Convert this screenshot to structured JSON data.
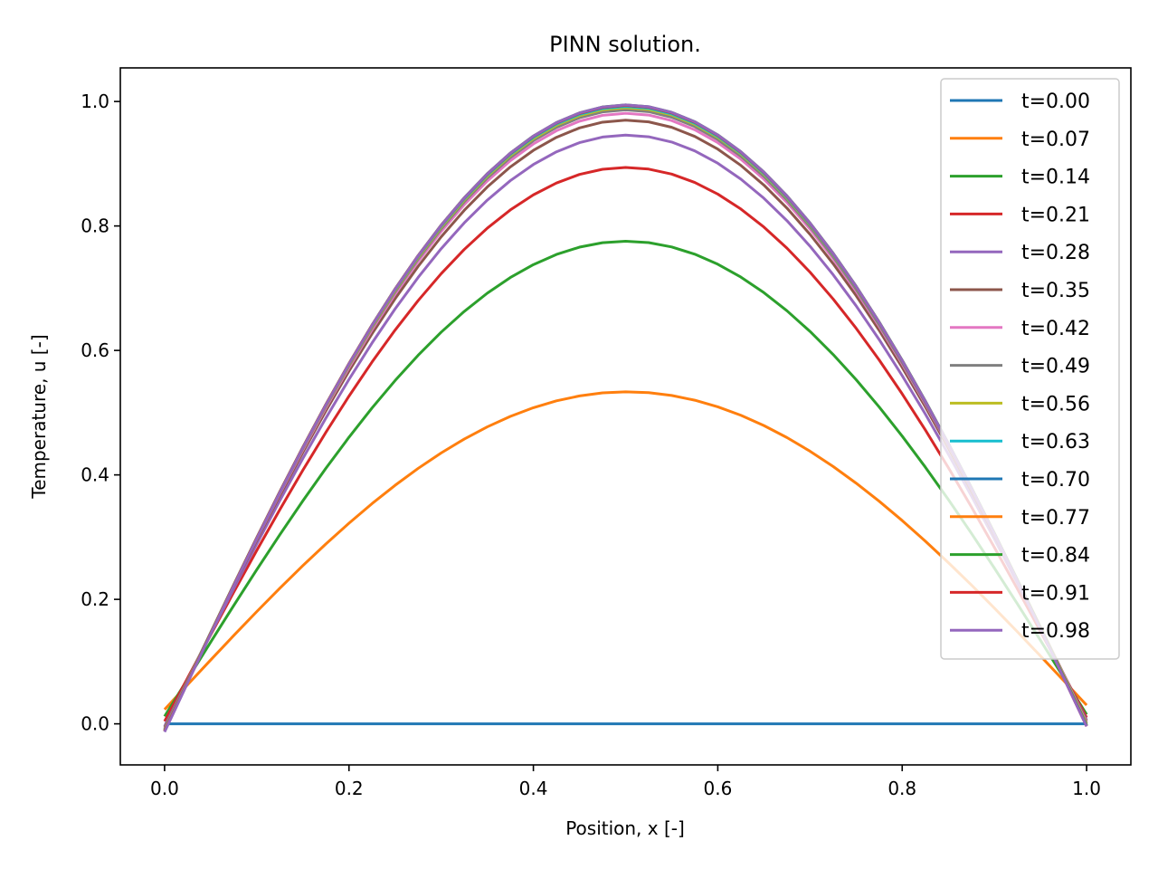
{
  "chart_data": {
    "type": "line",
    "title": "PINN solution.",
    "xlabel": "Position, x [-]",
    "ylabel": "Temperature, u [-]",
    "xlim": [
      -0.048,
      1.048
    ],
    "ylim": [
      -0.066,
      1.054
    ],
    "xticks": [
      "0.0",
      "0.2",
      "0.4",
      "0.6",
      "0.8",
      "1.0"
    ],
    "yticks": [
      "0.0",
      "0.2",
      "0.4",
      "0.6",
      "0.8",
      "1.0"
    ],
    "grid": false,
    "legend_position": "top-right",
    "x_samples": [
      0.0,
      0.025,
      0.05,
      0.075,
      0.1,
      0.125,
      0.15,
      0.175,
      0.2,
      0.225,
      0.25,
      0.275,
      0.3,
      0.325,
      0.35,
      0.375,
      0.4,
      0.425,
      0.45,
      0.475,
      0.5,
      0.525,
      0.55,
      0.575,
      0.6,
      0.625,
      0.65,
      0.675,
      0.7,
      0.725,
      0.75,
      0.775,
      0.8,
      0.825,
      0.85,
      0.875,
      0.9,
      0.925,
      0.95,
      0.975,
      1.0
    ],
    "series": [
      {
        "name": "t=0.00",
        "color": "#1f77b4",
        "peak": 0.0,
        "u0": 0.0,
        "u1": 0.0
      },
      {
        "name": "t=0.07",
        "color": "#ff7f0e",
        "peak": 0.507,
        "u0": 0.023,
        "u1": 0.03
      },
      {
        "name": "t=0.14",
        "color": "#2ca02c",
        "peak": 0.762,
        "u0": 0.012,
        "u1": 0.015
      },
      {
        "name": "t=0.21",
        "color": "#d62728",
        "peak": 0.887,
        "u0": 0.004,
        "u1": 0.01
      },
      {
        "name": "t=0.28",
        "color": "#9467bd",
        "peak": 0.945,
        "u0": -0.004,
        "u1": 0.006
      },
      {
        "name": "t=0.35",
        "color": "#8c564b",
        "peak": 0.971,
        "u0": -0.006,
        "u1": 0.004
      },
      {
        "name": "t=0.42",
        "color": "#e377c2",
        "peak": 0.984,
        "u0": -0.008,
        "u1": 0.002
      },
      {
        "name": "t=0.49",
        "color": "#7f7f7f",
        "peak": 0.991,
        "u0": -0.009,
        "u1": 0.0
      },
      {
        "name": "t=0.56",
        "color": "#bcbd22",
        "peak": 0.995,
        "u0": -0.01,
        "u1": 0.0
      },
      {
        "name": "t=0.63",
        "color": "#17becf",
        "peak": 0.998,
        "u0": -0.01,
        "u1": -0.002
      },
      {
        "name": "t=0.70",
        "color": "#1f77b4",
        "peak": 1.0,
        "u0": -0.011,
        "u1": -0.002
      },
      {
        "name": "t=0.77",
        "color": "#ff7f0e",
        "peak": 1.001,
        "u0": -0.011,
        "u1": -0.003
      },
      {
        "name": "t=0.84",
        "color": "#2ca02c",
        "peak": 1.002,
        "u0": -0.012,
        "u1": -0.003
      },
      {
        "name": "t=0.91",
        "color": "#d62728",
        "peak": 1.002,
        "u0": -0.012,
        "u1": -0.004
      },
      {
        "name": "t=0.98",
        "color": "#9467bd",
        "peak": 1.003,
        "u0": -0.013,
        "u1": -0.004
      }
    ]
  }
}
